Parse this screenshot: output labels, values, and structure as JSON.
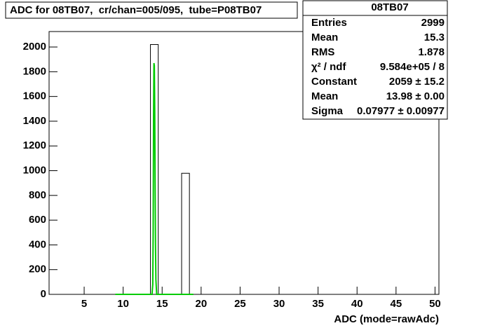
{
  "chart_data": {
    "type": "histogram",
    "title": "ADC for 08TB07,  cr/chan=005/095,  tube=P08TB07",
    "x_label": "ADC (mode=rawAdc)",
    "bins": [
      0.5,
      1.5,
      2.5,
      3.5,
      4.5,
      5.5,
      6.5,
      7.5,
      8.5,
      9.5,
      10.5,
      11.5,
      12.5,
      13.5,
      14.5,
      15.5,
      16.5,
      17.5,
      18.5,
      19.5,
      20.5,
      21.5,
      22.5,
      23.5,
      24.5,
      25.5,
      26.5,
      27.5,
      28.5,
      29.5,
      30.5,
      31.5,
      32.5,
      33.5,
      34.5,
      35.5,
      36.5,
      37.5,
      38.5,
      39.5,
      40.5,
      41.5,
      42.5,
      43.5,
      44.5,
      45.5,
      46.5,
      47.5,
      48.5,
      49.5,
      50.5
    ],
    "counts": [
      0,
      0,
      0,
      0,
      0,
      0,
      0,
      0,
      0,
      0,
      0,
      0,
      0,
      2020,
      0,
      0,
      0,
      979,
      0,
      0,
      0,
      0,
      0,
      0,
      0,
      0,
      0,
      0,
      0,
      0,
      0,
      0,
      0,
      0,
      0,
      0,
      0,
      0,
      0,
      0,
      0,
      0,
      0,
      0,
      0,
      0,
      0,
      0,
      0,
      0
    ],
    "color": "#000000",
    "fit": {
      "color": "#00cc00",
      "x": [
        9,
        13.7,
        13.8,
        13.85,
        13.9,
        13.95,
        14.0,
        14.05,
        14.1,
        14.15,
        14.2,
        14.3,
        19
      ],
      "y": [
        0,
        0,
        80,
        500,
        1400,
        1870,
        1850,
        1500,
        900,
        400,
        120,
        0,
        0
      ]
    },
    "xlim": [
      0.5,
      50.5
    ],
    "xticks": [
      5,
      10,
      15,
      20,
      25,
      30,
      35,
      40,
      45,
      50
    ],
    "ylim": [
      0,
      2125
    ],
    "yticks": [
      0,
      200,
      400,
      600,
      800,
      1000,
      1200,
      1400,
      1600,
      1800,
      2000
    ],
    "stats": {
      "title": "08TB07",
      "rows": [
        [
          "Entries",
          "2999"
        ],
        [
          "Mean",
          "15.3"
        ],
        [
          "RMS",
          "1.878"
        ],
        [
          "χ² / ndf",
          "9.584e+05 / 8"
        ],
        [
          "Constant",
          "2059 ± 15.2"
        ],
        [
          "Mean",
          "13.98 ± 0.00"
        ],
        [
          "Sigma",
          "0.07977 ± 0.00977"
        ]
      ]
    }
  }
}
